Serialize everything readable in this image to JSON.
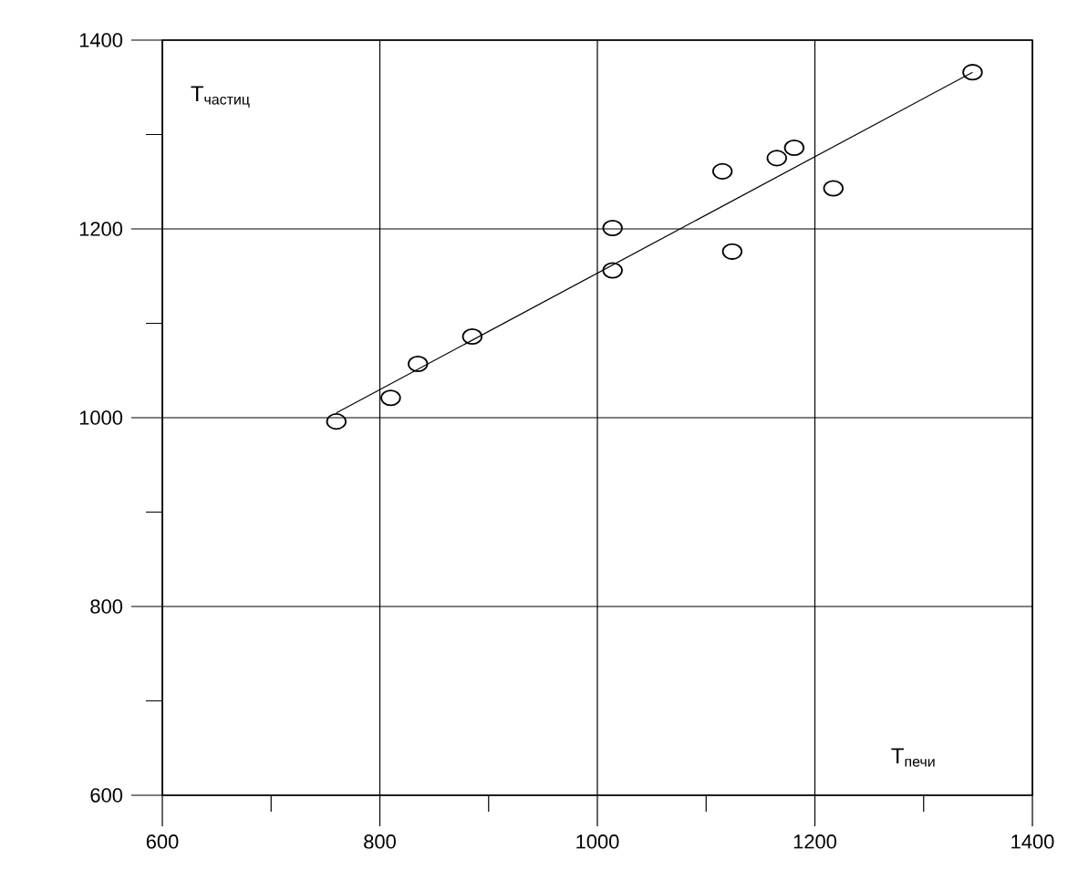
{
  "chart_data": {
    "type": "scatter",
    "xlabel": "T$_{печи}$",
    "ylabel": "T$_{частиц}$",
    "series": [
      {
        "marker": "circle",
        "color": "#000000",
        "x": [
          760,
          810,
          835,
          885,
          1014,
          1014,
          1115,
          1124,
          1165,
          1181,
          1217,
          1345
        ],
        "values": [
          996,
          1021,
          1057,
          1086,
          1156,
          1201,
          1261,
          1176,
          1275,
          1286,
          1243,
          1366
        ]
      },
      {
        "type": "line",
        "color": "#000000",
        "x": [
          760,
          1345
        ],
        "values": [
          1005,
          1366
        ]
      }
    ],
    "grid": true,
    "xlim": [
      600,
      1400
    ],
    "ylim": [
      600,
      1400
    ],
    "xticks": [
      600,
      {
        "value": 700,
        "label": null
      },
      800,
      {
        "value": 900,
        "label": null
      },
      1000,
      {
        "value": 1100,
        "label": null
      },
      1200,
      {
        "value": 1300,
        "label": null
      },
      1400
    ],
    "yticks": [
      600,
      {
        "value": 700,
        "label": null
      },
      800,
      {
        "value": 900,
        "label": null
      },
      1000,
      {
        "value": 1100,
        "label": null
      },
      1200,
      {
        "value": 1300,
        "label": null
      },
      1400
    ]
  }
}
